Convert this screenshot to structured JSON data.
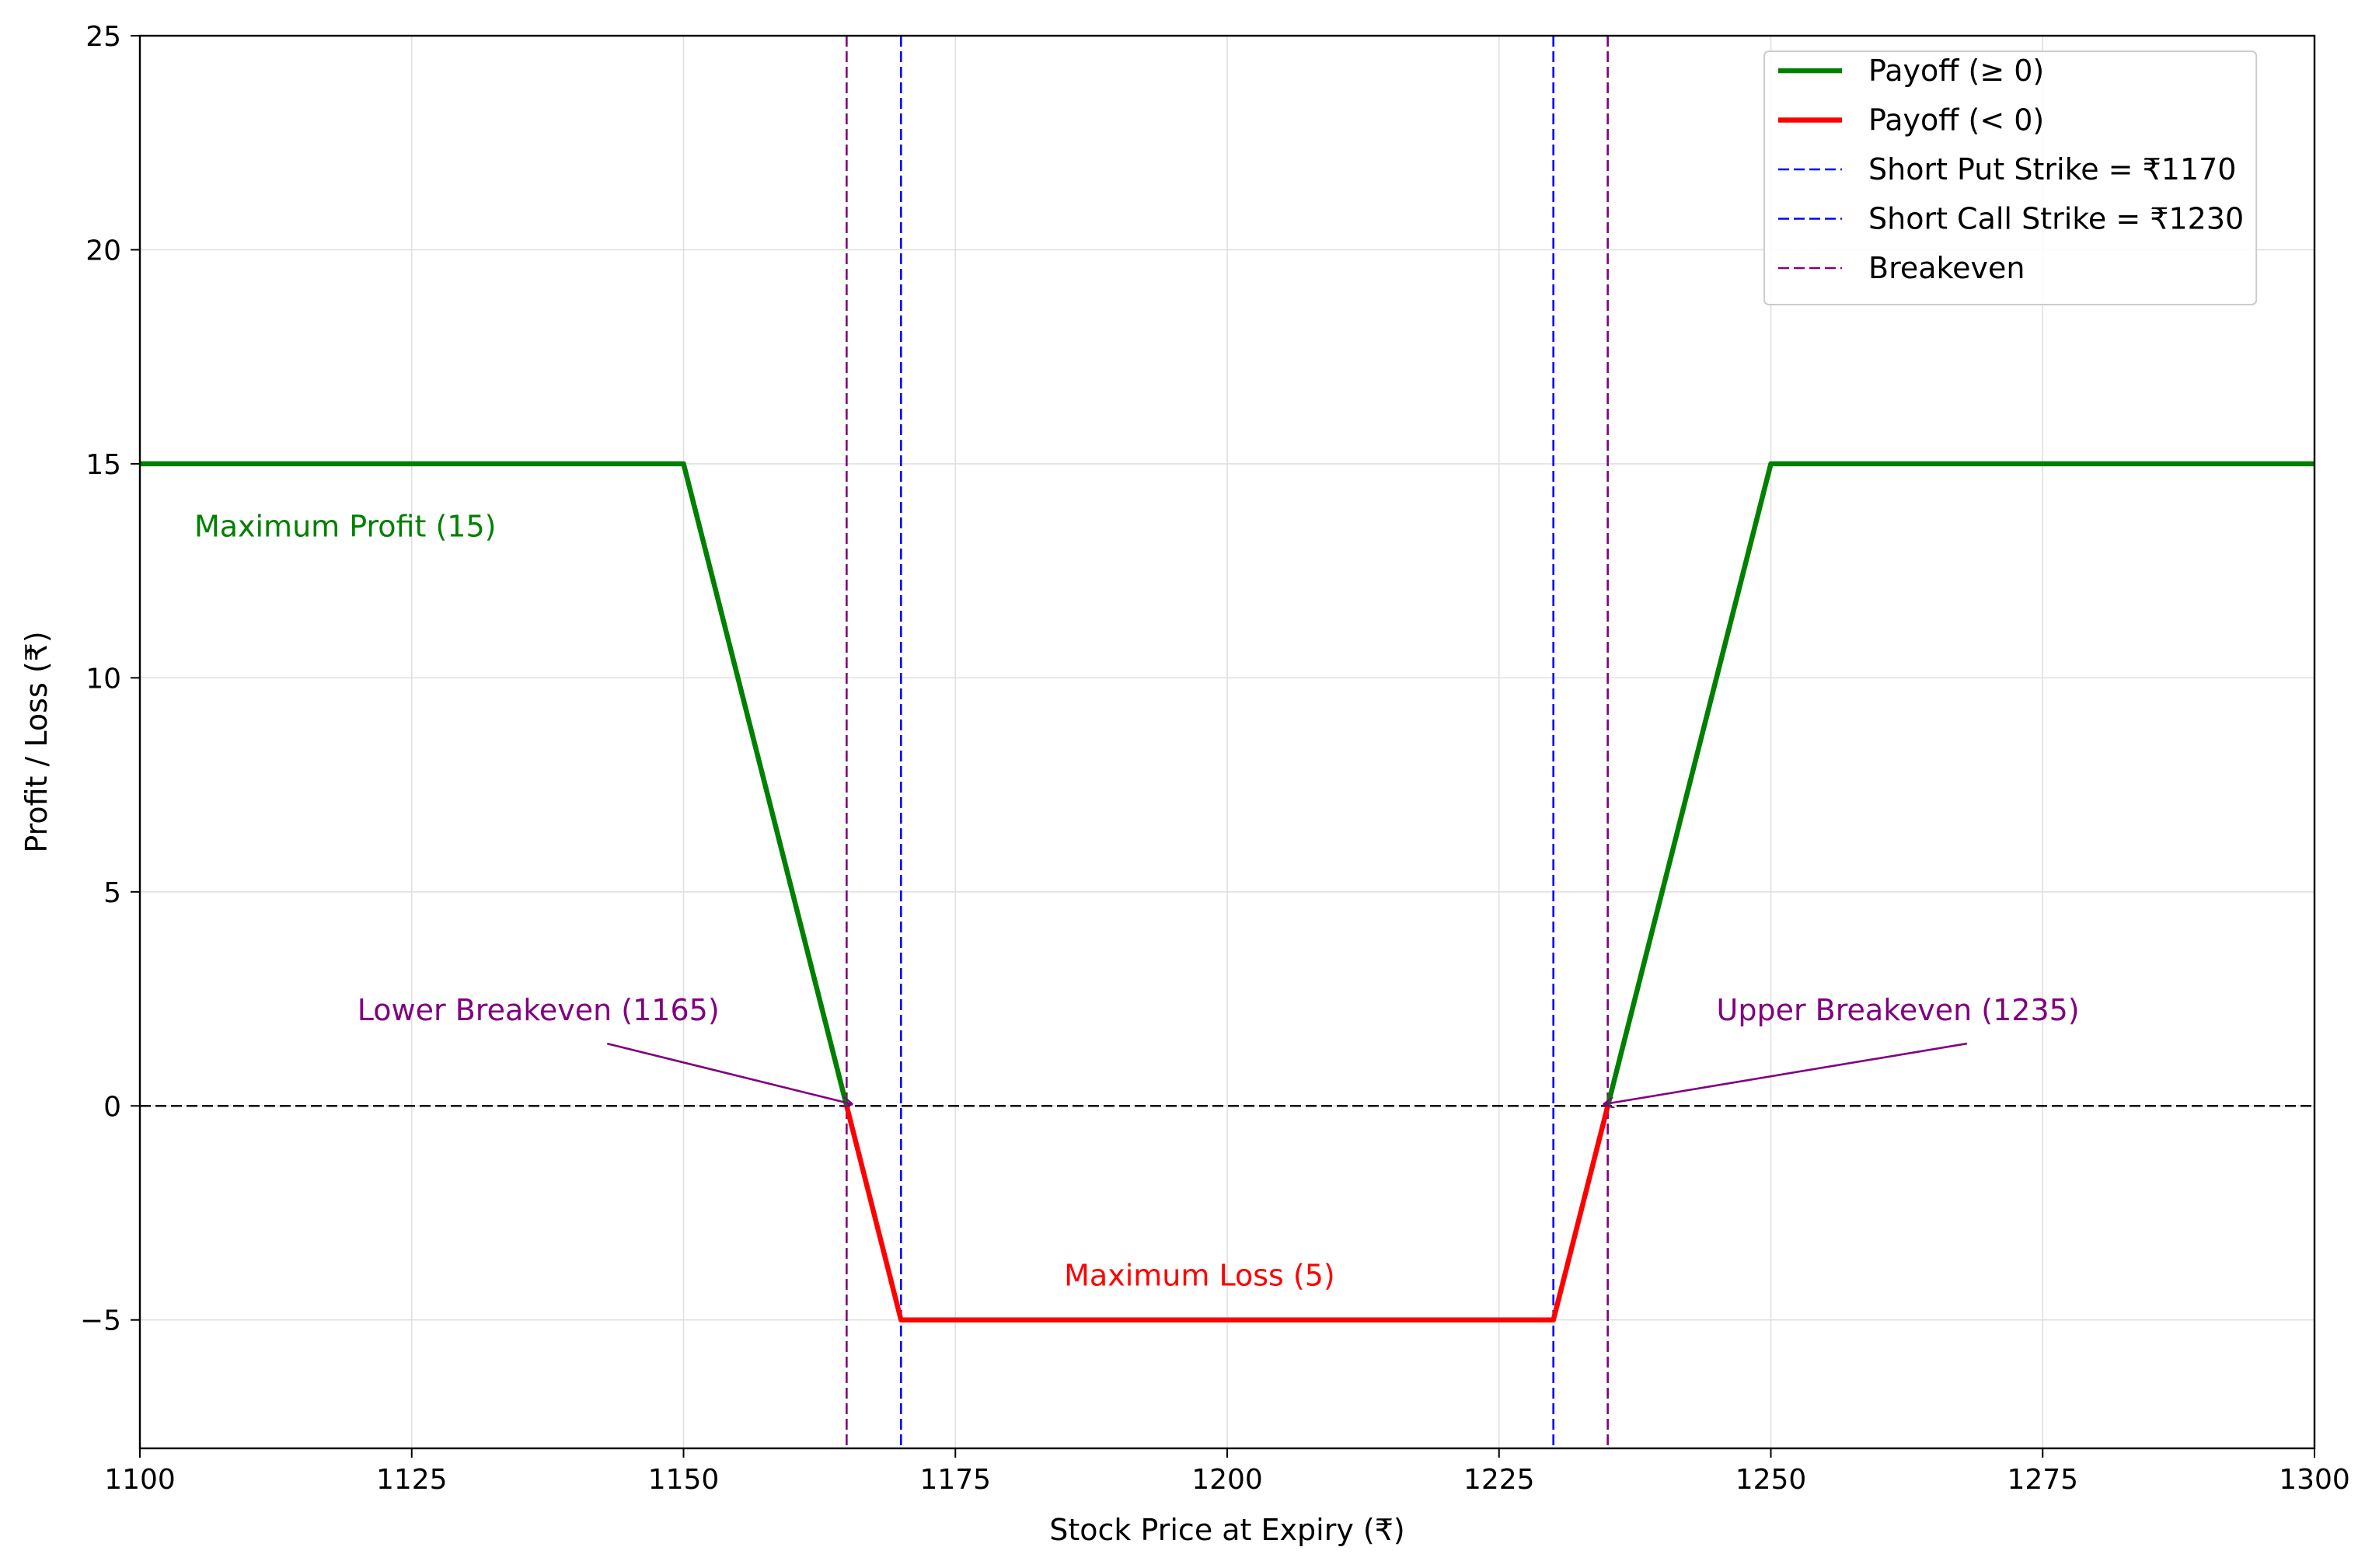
{
  "chart_data": {
    "type": "line",
    "title": "",
    "xlabel": "Stock Price at Expiry (₹)",
    "ylabel": "Profit / Loss (₹)",
    "xlim": [
      1100,
      1300
    ],
    "ylim": [
      -8,
      25
    ],
    "x_ticks": [
      1100,
      1125,
      1150,
      1175,
      1200,
      1225,
      1250,
      1275,
      1300
    ],
    "x_tick_labels": [
      "1100",
      "1125",
      "1150",
      "1175",
      "1200",
      "1225",
      "1250",
      "1275",
      "1300"
    ],
    "y_ticks": [
      -5,
      0,
      5,
      10,
      15,
      20,
      25
    ],
    "y_tick_labels": [
      "−5",
      "0",
      "5",
      "10",
      "15",
      "20",
      "25"
    ],
    "grid": true,
    "legend_position": "top-right",
    "series": [
      {
        "name": "Payoff (≥ 0)",
        "color": "#008000",
        "segments": [
          [
            [
              1100,
              15
            ],
            [
              1150,
              15
            ],
            [
              1165,
              0
            ]
          ],
          [
            [
              1235,
              0
            ],
            [
              1250,
              15
            ],
            [
              1300,
              15
            ]
          ]
        ]
      },
      {
        "name": "Payoff (< 0)",
        "color": "#ff0000",
        "segments": [
          [
            [
              1165,
              0
            ],
            [
              1170,
              -5
            ],
            [
              1230,
              -5
            ],
            [
              1235,
              0
            ]
          ]
        ]
      }
    ],
    "vlines": [
      {
        "name": "Short Put Strike = ₹1170",
        "x": 1170,
        "color": "#0000ff",
        "style": "dashed"
      },
      {
        "name": "Short Call Strike = ₹1230",
        "x": 1230,
        "color": "#0000ff",
        "style": "dashed"
      },
      {
        "name": "Breakeven",
        "x": 1165,
        "color": "#800080",
        "style": "dashed"
      },
      {
        "name": "Breakeven",
        "x": 1235,
        "color": "#800080",
        "style": "dashed"
      }
    ],
    "hlines": [
      {
        "y": 0,
        "color": "#000000",
        "style": "dashed"
      }
    ],
    "legend": [
      {
        "label": "Payoff (≥ 0)",
        "color": "#008000",
        "style": "solid"
      },
      {
        "label": "Payoff (< 0)",
        "color": "#ff0000",
        "style": "solid"
      },
      {
        "label": "Short Put Strike = ₹1170",
        "color": "#0000ff",
        "style": "dashed"
      },
      {
        "label": "Short Call Strike = ₹1230",
        "color": "#0000ff",
        "style": "dashed"
      },
      {
        "label": "Breakeven",
        "color": "#800080",
        "style": "dashed"
      }
    ],
    "annotations": [
      {
        "text": "Maximum Profit (15)",
        "color": "#008000",
        "x": 1105,
        "y": 13.3
      },
      {
        "text": "Maximum Loss (5)",
        "color": "#ff0000",
        "x": 1185,
        "y": -4.2
      },
      {
        "text": "Lower Breakeven (1165)",
        "color": "#800080",
        "x": 1120,
        "y": 2,
        "arrow_to": [
          1165,
          0
        ]
      },
      {
        "text": "Upper Breakeven (1235)",
        "color": "#800080",
        "x": 1245,
        "y": 2,
        "arrow_to": [
          1235,
          0
        ]
      }
    ]
  }
}
